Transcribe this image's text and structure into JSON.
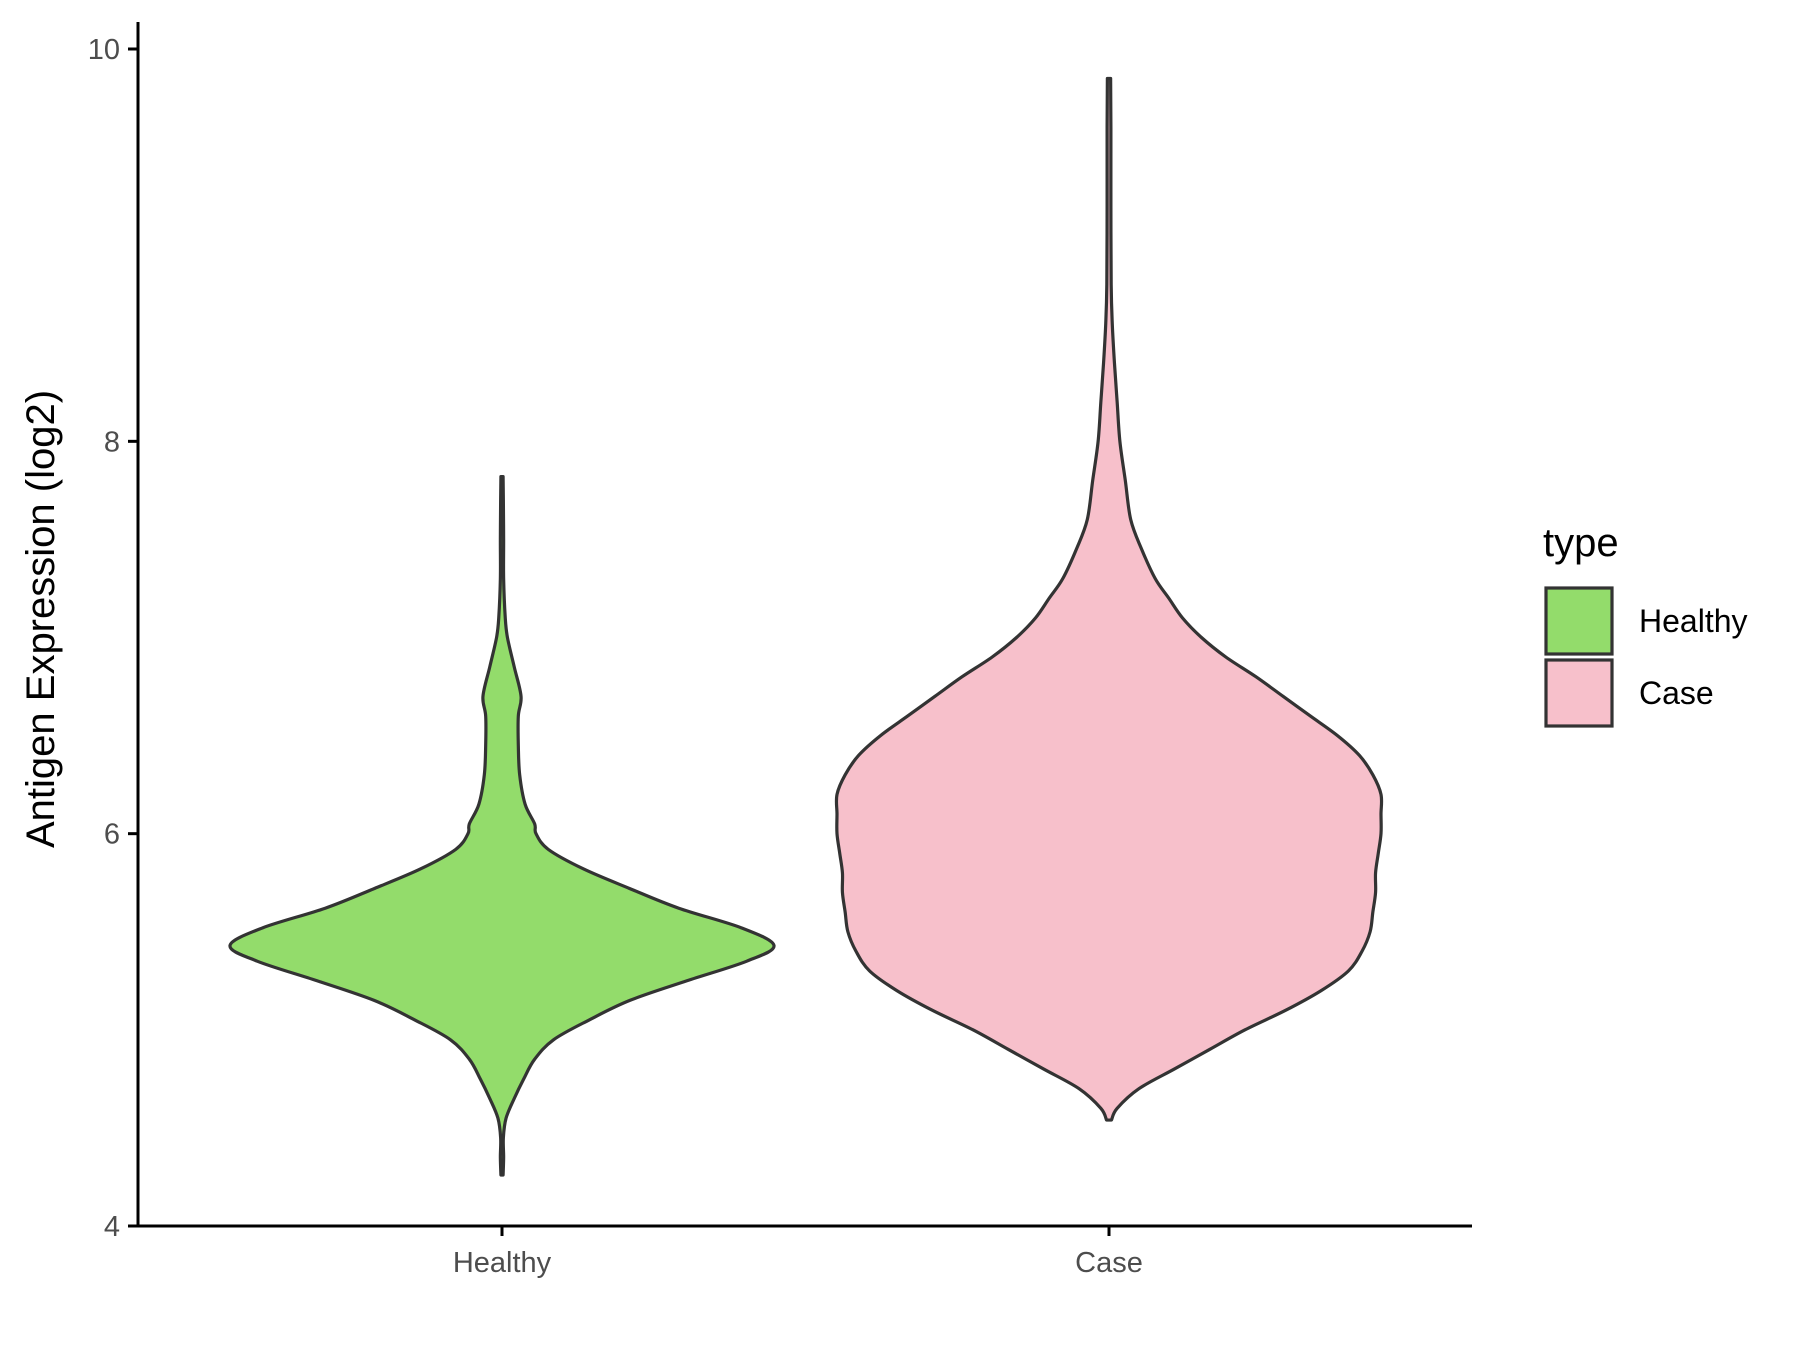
{
  "chart_data": {
    "type": "violin",
    "ylabel": "Antigen Expression (log2)",
    "xlabel": "",
    "ylim": [
      4,
      10
    ],
    "y_ticks": [
      "4",
      "6",
      "8",
      "10"
    ],
    "categories": [
      "Healthy",
      "Case"
    ],
    "grid": false,
    "legend": {
      "title": "type",
      "position": "right",
      "entries": [
        "Healthy",
        "Case"
      ]
    },
    "series": [
      {
        "name": "Healthy",
        "color": "#93dc6b",
        "min": 4.26,
        "max": 7.82,
        "density_profile": [
          [
            4.26,
            0.004
          ],
          [
            4.35,
            0.006
          ],
          [
            4.45,
            0.005
          ],
          [
            4.55,
            0.015
          ],
          [
            4.65,
            0.045
          ],
          [
            4.75,
            0.08
          ],
          [
            4.85,
            0.12
          ],
          [
            4.95,
            0.19
          ],
          [
            5.05,
            0.32
          ],
          [
            5.15,
            0.47
          ],
          [
            5.25,
            0.68
          ],
          [
            5.35,
            0.9
          ],
          [
            5.43,
            1.0
          ],
          [
            5.52,
            0.88
          ],
          [
            5.62,
            0.65
          ],
          [
            5.72,
            0.47
          ],
          [
            5.82,
            0.3
          ],
          [
            5.92,
            0.17
          ],
          [
            6.0,
            0.125
          ],
          [
            6.05,
            0.12
          ],
          [
            6.15,
            0.085
          ],
          [
            6.3,
            0.065
          ],
          [
            6.45,
            0.06
          ],
          [
            6.6,
            0.06
          ],
          [
            6.7,
            0.07
          ],
          [
            6.85,
            0.045
          ],
          [
            7.0,
            0.02
          ],
          [
            7.1,
            0.012
          ],
          [
            7.3,
            0.006
          ],
          [
            7.5,
            0.006
          ],
          [
            7.7,
            0.005
          ],
          [
            7.82,
            0.004
          ]
        ]
      },
      {
        "name": "Case",
        "color": "#f7c0cb",
        "min": 4.54,
        "max": 9.85,
        "density_profile": [
          [
            4.54,
            0.009
          ],
          [
            4.6,
            0.03
          ],
          [
            4.7,
            0.11
          ],
          [
            4.8,
            0.24
          ],
          [
            4.9,
            0.37
          ],
          [
            5.0,
            0.5
          ],
          [
            5.1,
            0.65
          ],
          [
            5.2,
            0.78
          ],
          [
            5.3,
            0.88
          ],
          [
            5.4,
            0.93
          ],
          [
            5.5,
            0.96
          ],
          [
            5.6,
            0.97
          ],
          [
            5.7,
            0.98
          ],
          [
            5.8,
            0.98
          ],
          [
            5.9,
            0.99
          ],
          [
            6.0,
            1.0
          ],
          [
            6.1,
            1.0
          ],
          [
            6.2,
            1.0
          ],
          [
            6.3,
            0.97
          ],
          [
            6.4,
            0.92
          ],
          [
            6.5,
            0.84
          ],
          [
            6.6,
            0.74
          ],
          [
            6.7,
            0.64
          ],
          [
            6.8,
            0.54
          ],
          [
            6.9,
            0.43
          ],
          [
            7.0,
            0.34
          ],
          [
            7.1,
            0.27
          ],
          [
            7.2,
            0.22
          ],
          [
            7.3,
            0.17
          ],
          [
            7.45,
            0.12
          ],
          [
            7.6,
            0.08
          ],
          [
            7.8,
            0.06
          ],
          [
            8.0,
            0.04
          ],
          [
            8.2,
            0.03
          ],
          [
            8.4,
            0.02
          ],
          [
            8.6,
            0.012
          ],
          [
            8.8,
            0.008
          ],
          [
            9.2,
            0.007
          ],
          [
            9.6,
            0.007
          ],
          [
            9.85,
            0.006
          ]
        ]
      }
    ]
  }
}
